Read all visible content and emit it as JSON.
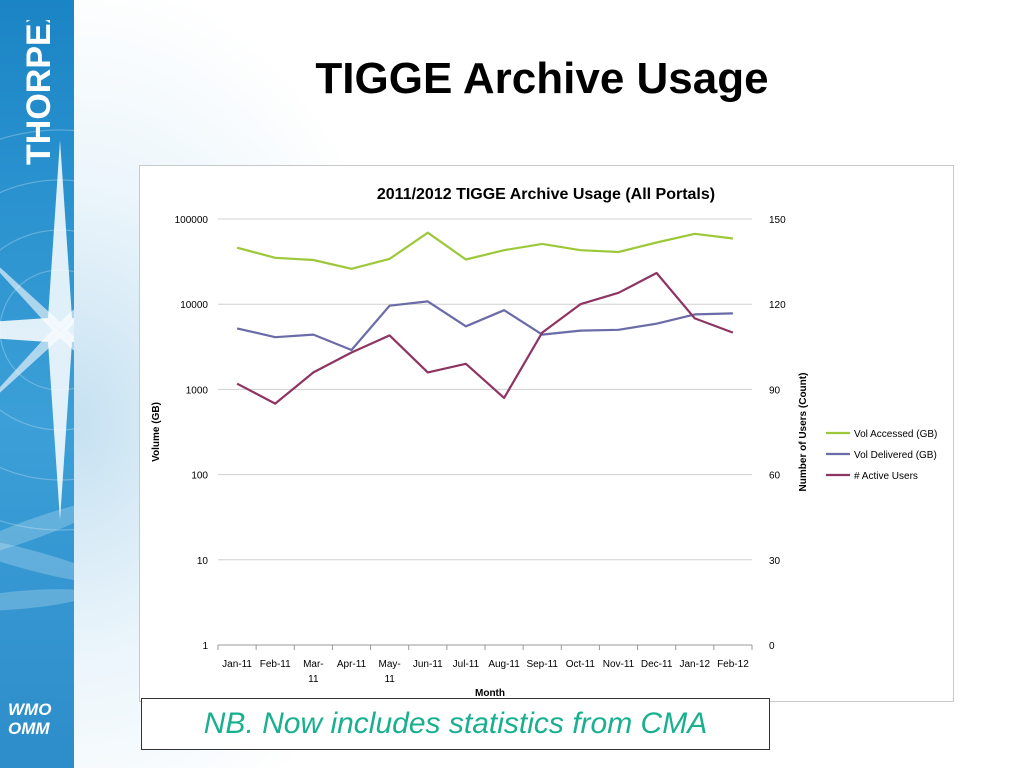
{
  "slide": {
    "title": "TIGGE Archive Usage",
    "note": "NB. Now includes statistics from CMA",
    "sidebar_logo": "THORPEX",
    "footer_logo_line1": "WMO",
    "footer_logo_line2": "OMM"
  },
  "colors": {
    "sidebar": "#2a92cf",
    "note_text": "#19b08f",
    "vol_accessed": "#9cc83a",
    "vol_delivered": "#6b6ba8",
    "active_users": "#8e3462"
  },
  "chart_data": {
    "type": "line",
    "title": "2011/2012 TIGGE Archive Usage (All Portals)",
    "xlabel": "Month",
    "ylabel": "Volume (GB)",
    "y2label": "Number of Users (Count)",
    "categories": [
      "Jan-11",
      "Feb-11",
      "Mar-11",
      "Apr-11",
      "May-11",
      "Jun-11",
      "Jul-11",
      "Aug-11",
      "Sep-11",
      "Oct-11",
      "Nov-11",
      "Dec-11",
      "Jan-12",
      "Feb-12"
    ],
    "y_axis": {
      "scale": "log",
      "min": 1,
      "max": 100000,
      "ticks": [
        "1",
        "10",
        "100",
        "1000",
        "10000",
        "100000"
      ]
    },
    "y2_axis": {
      "scale": "linear",
      "min": 0,
      "max": 150,
      "ticks": [
        "0",
        "30",
        "60",
        "90",
        "120",
        "150"
      ]
    },
    "grid": "horizontal",
    "legend_position": "right",
    "series": [
      {
        "name": "Vol Accessed (GB)",
        "axis": "left",
        "color": "#9cc83a",
        "values": [
          46000,
          35000,
          33000,
          26000,
          34000,
          69000,
          33500,
          43000,
          51000,
          43000,
          41000,
          53000,
          67000,
          59000
        ]
      },
      {
        "name": "Vol Delivered (GB)",
        "axis": "left",
        "color": "#6b6ba8",
        "values": [
          5200,
          4100,
          4400,
          2900,
          9600,
          10800,
          5500,
          8500,
          4400,
          4900,
          5000,
          5900,
          7600,
          7800
        ]
      },
      {
        "name": "# Active Users",
        "axis": "right",
        "color": "#8e3462",
        "values": [
          92,
          85,
          96,
          103,
          109,
          96,
          99,
          87,
          110,
          120,
          124,
          131,
          115,
          110
        ]
      }
    ]
  }
}
